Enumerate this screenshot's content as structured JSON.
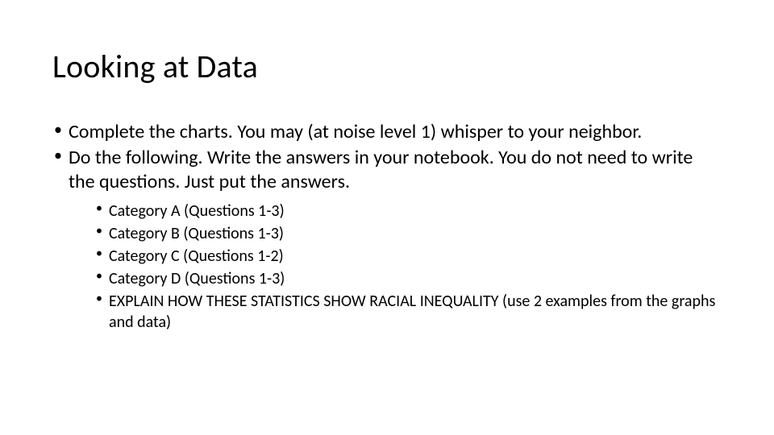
{
  "slide": {
    "title": "Looking at Data",
    "title_fontsize": 40,
    "title_color": "#000000",
    "background_color": "#ffffff",
    "main_bullets": [
      "Complete the charts.  You may (at noise level 1) whisper to your neighbor.",
      "Do the following.  Write the answers in your notebook.  You do not need to write the questions.  Just put the answers."
    ],
    "main_bullet_fontsize": 24,
    "sub_bullets": [
      "Category A (Questions 1-3)",
      "Category B (Questions 1-3)",
      "Category C (Questions 1-2)",
      "Category D (Questions 1-3)",
      "EXPLAIN HOW THESE STATISTICS SHOW RACIAL INEQUALITY (use 2 examples from the graphs and data)"
    ],
    "sub_bullet_fontsize": 20,
    "text_color": "#000000",
    "font_family": "Calibri"
  }
}
